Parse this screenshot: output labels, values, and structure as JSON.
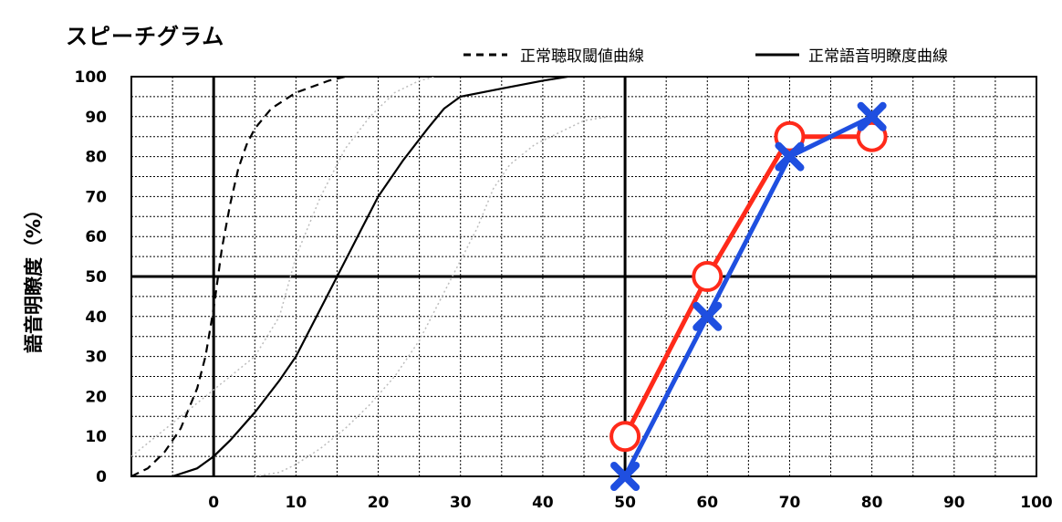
{
  "chart_data": {
    "type": "line",
    "title": "スピーチグラム",
    "xlabel": "",
    "ylabel": "語音明瞭度（%）",
    "xlim": [
      -10,
      100
    ],
    "ylim": [
      0,
      100
    ],
    "x_ticks": [
      "0",
      "10",
      "20",
      "30",
      "40",
      "50",
      "60",
      "70",
      "80",
      "90",
      "100"
    ],
    "y_ticks": [
      "0",
      "10",
      "20",
      "30",
      "40",
      "50",
      "60",
      "70",
      "80",
      "90",
      "100"
    ],
    "grid": true,
    "legend_position": "top-right",
    "legend": [
      {
        "label": "正常聴取閾値曲線",
        "style": "dashed"
      },
      {
        "label": "正常語音明瞭度曲線",
        "style": "solid"
      }
    ],
    "reference_curves": [
      {
        "name": "正常聴取閾値曲線",
        "style": "dashed",
        "color": "#000000",
        "points": [
          [
            -10,
            0
          ],
          [
            -8,
            2
          ],
          [
            -6,
            6
          ],
          [
            -4,
            12
          ],
          [
            -2,
            22
          ],
          [
            -1,
            30
          ],
          [
            0,
            42
          ],
          [
            1,
            57
          ],
          [
            2,
            68
          ],
          [
            3,
            77
          ],
          [
            4,
            83
          ],
          [
            5,
            87
          ],
          [
            7,
            92
          ],
          [
            10,
            96
          ],
          [
            14,
            99
          ],
          [
            16,
            100
          ]
        ]
      },
      {
        "name": "正常語音明瞭度曲線",
        "style": "solid",
        "color": "#000000",
        "points": [
          [
            -5,
            0
          ],
          [
            -2,
            2
          ],
          [
            0,
            5
          ],
          [
            2,
            9
          ],
          [
            5,
            16
          ],
          [
            8,
            24
          ],
          [
            10,
            30
          ],
          [
            12,
            38
          ],
          [
            15,
            50
          ],
          [
            18,
            62
          ],
          [
            20,
            70
          ],
          [
            23,
            79
          ],
          [
            26,
            87
          ],
          [
            28,
            92
          ],
          [
            30,
            95
          ],
          [
            35,
            97
          ],
          [
            40,
            99
          ],
          [
            43,
            100
          ]
        ]
      },
      {
        "name": "",
        "style": "dotted",
        "color": "#bdbdbd",
        "points": [
          [
            -10,
            5
          ],
          [
            -7,
            10
          ],
          [
            -4,
            15
          ],
          [
            -1,
            20
          ],
          [
            2,
            25
          ],
          [
            5,
            30
          ],
          [
            8,
            40
          ],
          [
            10,
            55
          ],
          [
            13,
            70
          ],
          [
            16,
            82
          ],
          [
            19,
            90
          ],
          [
            22,
            96
          ],
          [
            25,
            99
          ],
          [
            27,
            100
          ]
        ]
      },
      {
        "name": "",
        "style": "dotted",
        "color": "#bdbdbd",
        "points": [
          [
            5,
            0
          ],
          [
            8,
            1
          ],
          [
            10,
            3
          ],
          [
            13,
            7
          ],
          [
            16,
            12
          ],
          [
            19,
            18
          ],
          [
            22,
            25
          ],
          [
            25,
            34
          ],
          [
            27,
            42
          ],
          [
            29,
            50
          ],
          [
            32,
            62
          ],
          [
            34,
            72
          ],
          [
            36,
            78
          ],
          [
            39,
            83
          ],
          [
            42,
            86
          ],
          [
            45,
            89
          ],
          [
            48,
            90
          ]
        ]
      }
    ],
    "series": [
      {
        "name": "",
        "color": "#ff2a1a",
        "marker": "circle",
        "x": [
          50,
          60,
          70,
          80
        ],
        "y": [
          10,
          50,
          85,
          85
        ]
      },
      {
        "name": "",
        "color": "#1f4fe0",
        "marker": "cross",
        "x": [
          50,
          60,
          70,
          80
        ],
        "y": [
          0,
          40,
          80,
          90
        ]
      }
    ]
  }
}
